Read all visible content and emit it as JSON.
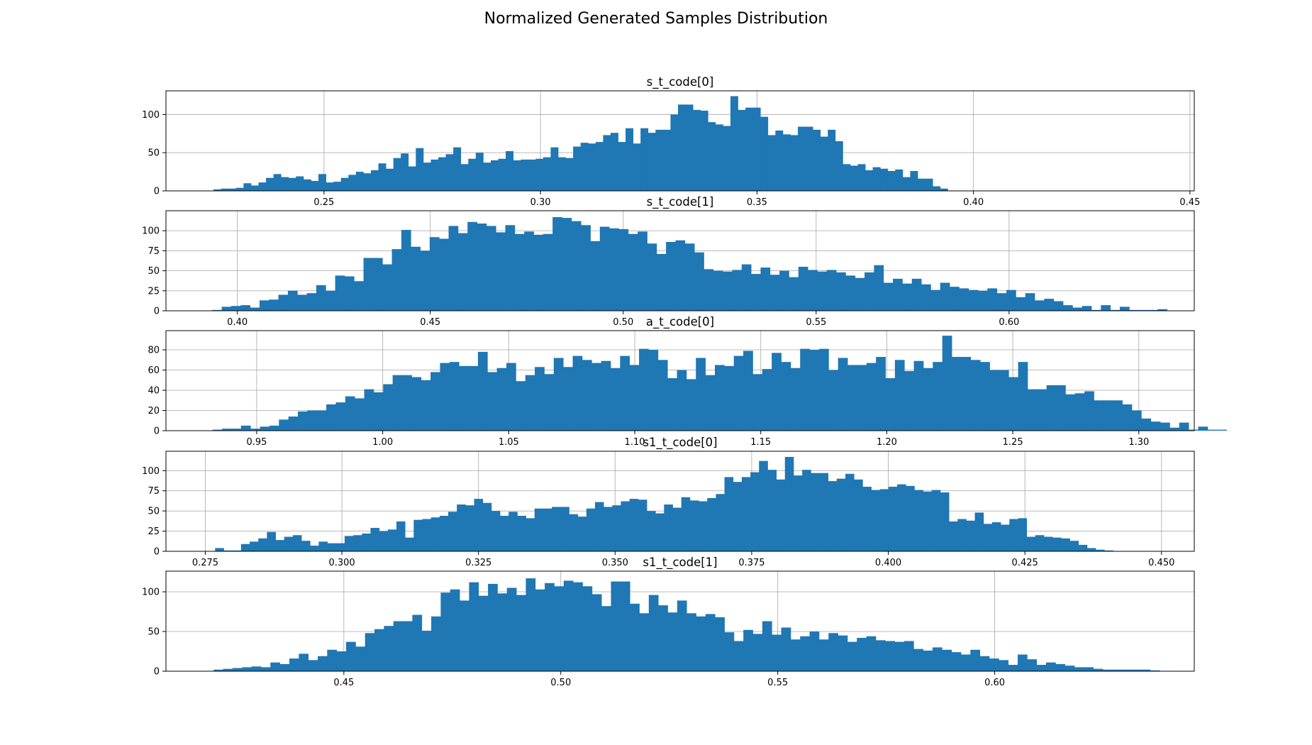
{
  "title": "Normalized Generated Samples Distribution",
  "colors": {
    "bar": "#1f77b4",
    "grid": "#b0b0b0"
  },
  "chart_data": [
    {
      "type": "bar",
      "title": "s_t_code[0]",
      "grid": true,
      "xlim": [
        0.2135,
        0.451
      ],
      "ylim": [
        0,
        131
      ],
      "xticks": [
        "0.25",
        "0.30",
        "0.35",
        "0.40",
        "0.45"
      ],
      "yticks": [
        "0",
        "50",
        "100"
      ],
      "x_start": 0.2245,
      "bin_width": 0.00173,
      "values": [
        2,
        3,
        3,
        4,
        10,
        7,
        11,
        17,
        22,
        18,
        17,
        19,
        15,
        13,
        22,
        11,
        12,
        17,
        21,
        25,
        23,
        27,
        36,
        29,
        43,
        49,
        32,
        56,
        37,
        41,
        44,
        48,
        57,
        35,
        42,
        50,
        37,
        40,
        42,
        52,
        40,
        41,
        41,
        42,
        44,
        57,
        44,
        43,
        58,
        63,
        62,
        64,
        73,
        76,
        64,
        82,
        62,
        82,
        76,
        80,
        80,
        100,
        113,
        113,
        106,
        105,
        90,
        87,
        85,
        124,
        106,
        109,
        109,
        97,
        73,
        79,
        74,
        73,
        84,
        84,
        80,
        71,
        80,
        65,
        35,
        33,
        35,
        27,
        31,
        29,
        26,
        28,
        18,
        26,
        16,
        16,
        6,
        3
      ]
    },
    {
      "type": "bar",
      "title": "s_t_code[1]",
      "grid": true,
      "xlim": [
        0.3815,
        0.648
      ],
      "ylim": [
        0,
        125
      ],
      "xticks": [
        "0.40",
        "0.45",
        "0.50",
        "0.55",
        "0.60"
      ],
      "yticks": [
        "0",
        "25",
        "50",
        "75",
        "100"
      ],
      "x_start": 0.3935,
      "bin_width": 0.00245,
      "values": [
        1,
        5,
        6,
        7,
        4,
        13,
        14,
        20,
        25,
        20,
        22,
        32,
        25,
        44,
        43,
        37,
        66,
        66,
        58,
        77,
        101,
        80,
        75,
        92,
        90,
        106,
        97,
        111,
        109,
        106,
        98,
        107,
        96,
        99,
        95,
        96,
        117,
        116,
        112,
        107,
        87,
        105,
        103,
        102,
        96,
        99,
        84,
        71,
        86,
        88,
        84,
        73,
        52,
        50,
        49,
        51,
        58,
        46,
        54,
        45,
        50,
        42,
        55,
        51,
        49,
        51,
        48,
        44,
        41,
        48,
        57,
        35,
        40,
        34,
        40,
        33,
        26,
        35,
        30,
        28,
        26,
        25,
        28,
        22,
        26,
        17,
        22,
        13,
        15,
        12,
        7,
        4,
        6,
        1,
        7,
        1,
        5,
        1,
        1,
        1,
        2
      ]
    },
    {
      "type": "bar",
      "title": "a_t_code[0]",
      "grid": true,
      "xlim": [
        0.914,
        1.322
      ],
      "ylim": [
        0,
        99
      ],
      "xticks": [
        "0.95",
        "1.00",
        "1.05",
        "1.10",
        "1.15",
        "1.20",
        "1.25",
        "1.30"
      ],
      "yticks": [
        "0",
        "20",
        "40",
        "60",
        "80"
      ],
      "x_start": 0.9325,
      "bin_width": 0.00376,
      "values": [
        1,
        2,
        2,
        5,
        2,
        4,
        5,
        11,
        14,
        19,
        20,
        20,
        26,
        28,
        34,
        32,
        41,
        38,
        46,
        55,
        55,
        53,
        50,
        58,
        67,
        68,
        64,
        64,
        78,
        58,
        62,
        67,
        49,
        55,
        63,
        56,
        72,
        63,
        74,
        70,
        67,
        69,
        62,
        74,
        65,
        81,
        80,
        70,
        52,
        60,
        51,
        72,
        55,
        65,
        64,
        74,
        79,
        56,
        61,
        77,
        68,
        62,
        81,
        80,
        81,
        60,
        72,
        65,
        65,
        67,
        73,
        52,
        70,
        59,
        69,
        62,
        68,
        94,
        73,
        73,
        70,
        68,
        60,
        60,
        53,
        68,
        41,
        41,
        45,
        45,
        36,
        37,
        39,
        30,
        30,
        30,
        26,
        20,
        12,
        9,
        8,
        3,
        8,
        1,
        4,
        1,
        1
      ]
    },
    {
      "type": "bar",
      "title": "s1_t_code[0]",
      "grid": true,
      "xlim": [
        0.2678,
        0.456
      ],
      "ylim": [
        0,
        124
      ],
      "xticks": [
        "0.275",
        "0.300",
        "0.325",
        "0.350",
        "0.375",
        "0.400",
        "0.425",
        "0.450"
      ],
      "yticks": [
        "0",
        "25",
        "50",
        "75",
        "100"
      ],
      "x_start": 0.2768,
      "bin_width": 0.00158,
      "values": [
        4,
        1,
        1,
        9,
        12,
        16,
        24,
        14,
        18,
        20,
        13,
        7,
        12,
        10,
        10,
        19,
        20,
        22,
        29,
        25,
        27,
        37,
        17,
        39,
        40,
        42,
        44,
        49,
        58,
        57,
        65,
        60,
        50,
        44,
        49,
        44,
        41,
        53,
        53,
        55,
        55,
        46,
        43,
        53,
        61,
        55,
        57,
        62,
        65,
        64,
        50,
        47,
        58,
        54,
        67,
        63,
        62,
        66,
        71,
        92,
        86,
        92,
        98,
        112,
        101,
        89,
        117,
        94,
        101,
        97,
        97,
        87,
        90,
        96,
        89,
        80,
        76,
        77,
        80,
        83,
        81,
        76,
        74,
        76,
        73,
        37,
        40,
        38,
        48,
        34,
        36,
        33,
        40,
        41,
        18,
        20,
        18,
        17,
        16,
        13,
        8,
        4,
        2,
        1
      ]
    },
    {
      "type": "bar",
      "title": "s1_t_code[1]",
      "grid": true,
      "xlim": [
        0.409,
        0.646
      ],
      "ylim": [
        0,
        126
      ],
      "xticks": [
        "0.45",
        "0.50",
        "0.55",
        "0.60"
      ],
      "yticks": [
        "0",
        "50",
        "100"
      ],
      "x_start": 0.42,
      "bin_width": 0.00218,
      "values": [
        2,
        3,
        4,
        5,
        6,
        5,
        11,
        9,
        16,
        22,
        14,
        19,
        27,
        25,
        37,
        31,
        48,
        53,
        57,
        63,
        63,
        71,
        51,
        69,
        99,
        103,
        89,
        112,
        95,
        110,
        98,
        105,
        96,
        117,
        103,
        111,
        107,
        114,
        112,
        107,
        97,
        82,
        113,
        113,
        85,
        73,
        96,
        83,
        74,
        89,
        73,
        69,
        72,
        68,
        49,
        38,
        52,
        47,
        63,
        46,
        55,
        40,
        44,
        50,
        40,
        48,
        45,
        37,
        42,
        44,
        39,
        38,
        37,
        38,
        28,
        26,
        30,
        27,
        24,
        21,
        27,
        19,
        16,
        14,
        8,
        21,
        15,
        8,
        11,
        9,
        7,
        5,
        5,
        3,
        2,
        2,
        2,
        2,
        2,
        1
      ]
    }
  ]
}
